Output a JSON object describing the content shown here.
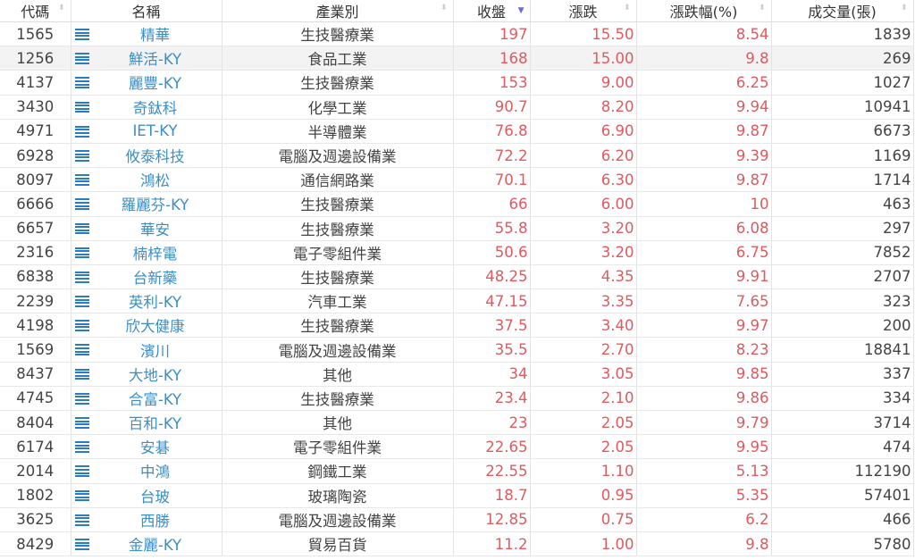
{
  "headers": [
    "代碼",
    "名稱",
    "產業別",
    "收盤",
    "漲跌",
    "漲跌幅(%)",
    "成交量(張)"
  ],
  "sorted_column": "收盤",
  "sort_direction": "descending",
  "colors": {
    "up_red": "#e05a5f",
    "name_blue": "#3b8fc4",
    "icon_blue": "#2a7bc0"
  },
  "rows": [
    {
      "code": "1565",
      "name": "精華",
      "industry": "生技醫療業",
      "close": "197",
      "change": "15.50",
      "pct": "8.54",
      "volume": "1839"
    },
    {
      "code": "1256",
      "name": "鮮活-KY",
      "industry": "食品工業",
      "close": "168",
      "change": "15.00",
      "pct": "9.8",
      "volume": "269"
    },
    {
      "code": "4137",
      "name": "麗豐-KY",
      "industry": "生技醫療業",
      "close": "153",
      "change": "9.00",
      "pct": "6.25",
      "volume": "1027"
    },
    {
      "code": "3430",
      "name": "奇鈦科",
      "industry": "化學工業",
      "close": "90.7",
      "change": "8.20",
      "pct": "9.94",
      "volume": "10941"
    },
    {
      "code": "4971",
      "name": "IET-KY",
      "industry": "半導體業",
      "close": "76.8",
      "change": "6.90",
      "pct": "9.87",
      "volume": "6673"
    },
    {
      "code": "6928",
      "name": "攸泰科技",
      "industry": "電腦及週邊設備業",
      "close": "72.2",
      "change": "6.20",
      "pct": "9.39",
      "volume": "1169"
    },
    {
      "code": "8097",
      "name": "鴻松",
      "industry": "通信網路業",
      "close": "70.1",
      "change": "6.30",
      "pct": "9.87",
      "volume": "1714"
    },
    {
      "code": "6666",
      "name": "羅麗芬-KY",
      "industry": "生技醫療業",
      "close": "66",
      "change": "6.00",
      "pct": "10",
      "volume": "463"
    },
    {
      "code": "6657",
      "name": "華安",
      "industry": "生技醫療業",
      "close": "55.8",
      "change": "3.20",
      "pct": "6.08",
      "volume": "297"
    },
    {
      "code": "2316",
      "name": "楠梓電",
      "industry": "電子零組件業",
      "close": "50.6",
      "change": "3.20",
      "pct": "6.75",
      "volume": "7852"
    },
    {
      "code": "6838",
      "name": "台新藥",
      "industry": "生技醫療業",
      "close": "48.25",
      "change": "4.35",
      "pct": "9.91",
      "volume": "2707"
    },
    {
      "code": "2239",
      "name": "英利-KY",
      "industry": "汽車工業",
      "close": "47.15",
      "change": "3.35",
      "pct": "7.65",
      "volume": "323"
    },
    {
      "code": "4198",
      "name": "欣大健康",
      "industry": "生技醫療業",
      "close": "37.5",
      "change": "3.40",
      "pct": "9.97",
      "volume": "200"
    },
    {
      "code": "1569",
      "name": "濱川",
      "industry": "電腦及週邊設備業",
      "close": "35.5",
      "change": "2.70",
      "pct": "8.23",
      "volume": "18841"
    },
    {
      "code": "8437",
      "name": "大地-KY",
      "industry": "其他",
      "close": "34",
      "change": "3.05",
      "pct": "9.85",
      "volume": "337"
    },
    {
      "code": "4745",
      "name": "合富-KY",
      "industry": "生技醫療業",
      "close": "23.4",
      "change": "2.10",
      "pct": "9.86",
      "volume": "334"
    },
    {
      "code": "8404",
      "name": "百和-KY",
      "industry": "其他",
      "close": "23",
      "change": "2.05",
      "pct": "9.79",
      "volume": "3714"
    },
    {
      "code": "6174",
      "name": "安碁",
      "industry": "電子零組件業",
      "close": "22.65",
      "change": "2.05",
      "pct": "9.95",
      "volume": "474"
    },
    {
      "code": "2014",
      "name": "中鴻",
      "industry": "鋼鐵工業",
      "close": "22.55",
      "change": "1.10",
      "pct": "5.13",
      "volume": "112190"
    },
    {
      "code": "1802",
      "name": "台玻",
      "industry": "玻璃陶瓷",
      "close": "18.7",
      "change": "0.95",
      "pct": "5.35",
      "volume": "57401"
    },
    {
      "code": "3625",
      "name": "西勝",
      "industry": "電腦及週邊設備業",
      "close": "12.85",
      "change": "0.75",
      "pct": "6.2",
      "volume": "466"
    },
    {
      "code": "8429",
      "name": "金麗-KY",
      "industry": "貿易百貨",
      "close": "11.2",
      "change": "1.00",
      "pct": "9.8",
      "volume": "5780"
    }
  ]
}
